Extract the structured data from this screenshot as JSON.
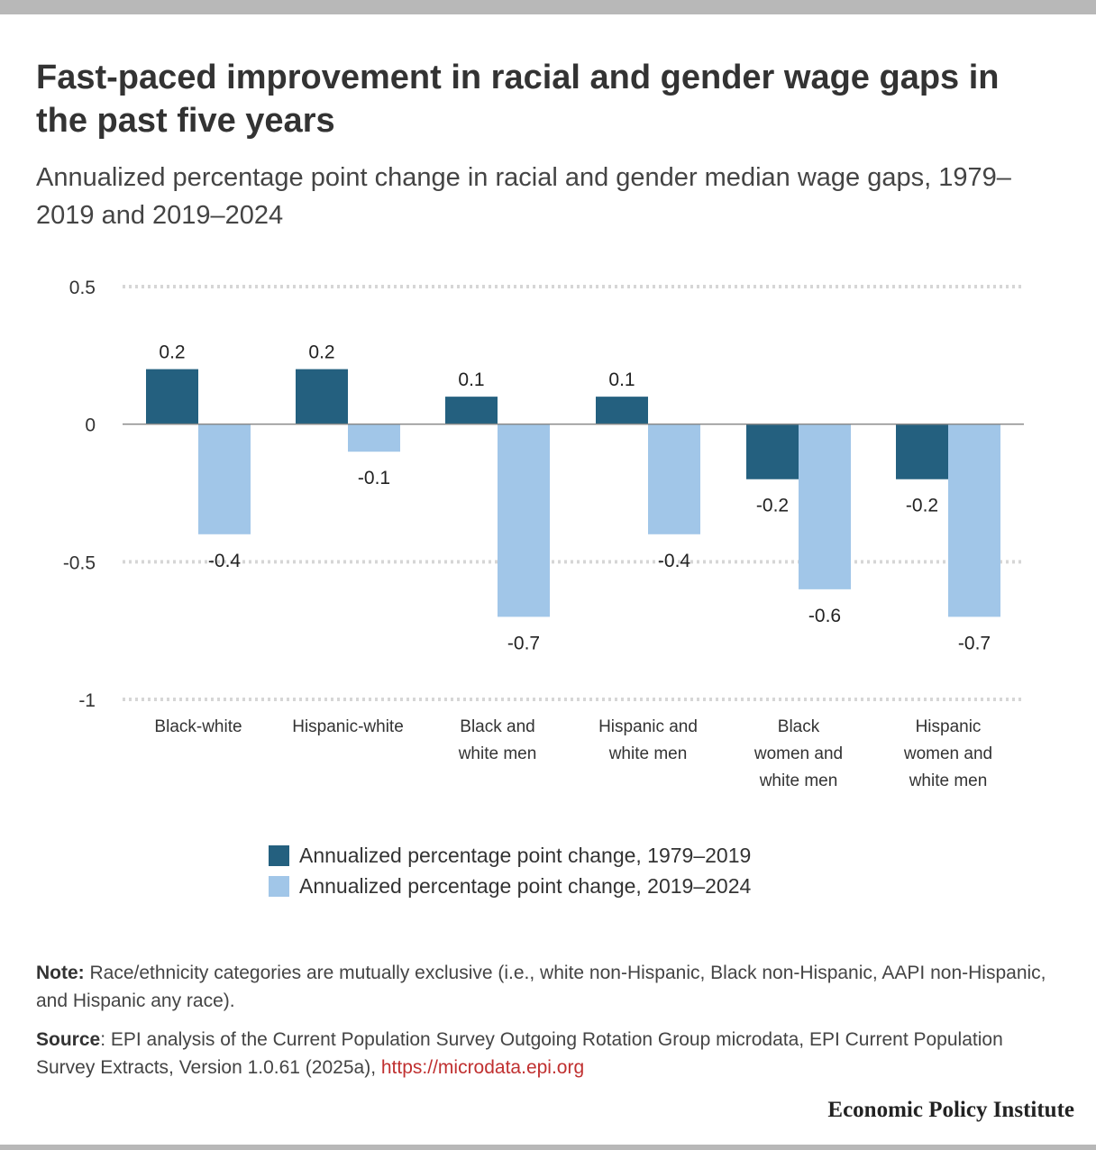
{
  "title": "Fast-paced improvement in racial and gender wage gaps in the past five years",
  "subtitle": "Annualized percentage point change in racial and gender median wage gaps, 1979–2019 and 2019–2024",
  "chart_data": {
    "type": "bar",
    "categories": [
      [
        "Black-white"
      ],
      [
        "Hispanic-white"
      ],
      [
        "Black and",
        "white men"
      ],
      [
        "Hispanic and",
        "white men"
      ],
      [
        "Black",
        "women and",
        "white men"
      ],
      [
        "Hispanic",
        "women and",
        "white men"
      ]
    ],
    "series": [
      {
        "name": "Annualized percentage point change, 1979–2019",
        "values": [
          0.2,
          0.2,
          0.1,
          0.1,
          -0.2,
          -0.2
        ],
        "labels": [
          "0.2",
          "0.2",
          "0.1",
          "0.1",
          "-0.2",
          "-0.2"
        ],
        "color": "#24607f"
      },
      {
        "name": "Annualized percentage point change, 2019–2024",
        "values": [
          -0.4,
          -0.1,
          -0.7,
          -0.4,
          -0.6,
          -0.7
        ],
        "labels": [
          "-0.4",
          "-0.1",
          "-0.7",
          "-0.4",
          "-0.6",
          "-0.7"
        ],
        "color": "#a1c6e8"
      }
    ],
    "ylim": [
      -1,
      0.5
    ],
    "yticks": [
      {
        "value": 0.5,
        "label": "0.5"
      },
      {
        "value": 0,
        "label": "0"
      },
      {
        "value": -0.5,
        "label": "-0.5"
      },
      {
        "value": -1,
        "label": "-1"
      }
    ],
    "grid": true,
    "legend": "bottom"
  },
  "note": {
    "label": "Note:",
    "text": " Race/ethnicity categories are mutually exclusive (i.e., white non-Hispanic, Black non-Hispanic, AAPI non-Hispanic, and Hispanic any race)."
  },
  "source": {
    "label": "Source",
    "text": ": EPI analysis of the Current Population Survey Outgoing Rotation Group microdata, EPI Current Population Survey Extracts, Version 1.0.61 (2025a), ",
    "link": "https://microdata.epi.org"
  },
  "organization": "Economic Policy Institute"
}
